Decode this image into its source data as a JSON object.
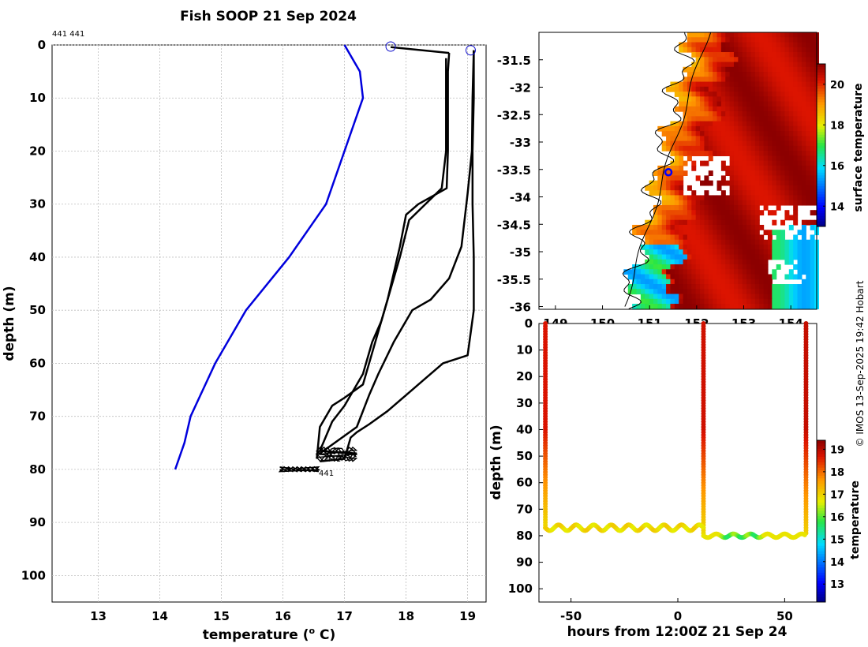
{
  "title": "Fish SOOP 21 Sep 2024",
  "copyright": "© IMOS 13-Sep-2025 19:42 Hobart",
  "chart_data": [
    {
      "type": "line",
      "panel": "temperature-profiles",
      "corner_label": "441 441",
      "xlabel": "temperature (°C)",
      "ylabel": "depth (m)",
      "xlim": [
        12.25,
        19.3
      ],
      "ylim": [
        105,
        0
      ],
      "xticks": [
        13,
        14,
        15,
        16,
        17,
        18,
        19
      ],
      "yticks": [
        0,
        10,
        20,
        30,
        40,
        50,
        60,
        70,
        80,
        90,
        100
      ],
      "grid": true,
      "bottom_labels": [
        "441",
        "441"
      ],
      "climatology": {
        "color": "#0000dd",
        "points": [
          [
            17.0,
            0
          ],
          [
            17.25,
            5
          ],
          [
            17.3,
            10
          ],
          [
            17.0,
            20
          ],
          [
            16.7,
            30
          ],
          [
            16.1,
            40
          ],
          [
            15.4,
            50
          ],
          [
            14.9,
            60
          ],
          [
            14.5,
            70
          ],
          [
            14.4,
            75
          ],
          [
            14.25,
            80
          ]
        ]
      },
      "profiles": [
        {
          "color": "#000000",
          "points": [
            [
              18.7,
              1.5
            ],
            [
              18.68,
              5
            ],
            [
              18.68,
              20
            ],
            [
              18.66,
              27
            ],
            [
              18.2,
              30
            ],
            [
              18.0,
              32
            ],
            [
              17.9,
              38
            ],
            [
              17.7,
              48
            ],
            [
              17.4,
              60
            ],
            [
              17.3,
              64
            ],
            [
              17.0,
              66.5
            ],
            [
              16.8,
              68
            ],
            [
              16.6,
              72
            ],
            [
              16.55,
              78
            ]
          ]
        },
        {
          "color": "#000000",
          "points": [
            [
              18.65,
              2.5
            ],
            [
              18.65,
              20
            ],
            [
              18.58,
              27
            ],
            [
              18.05,
              33
            ],
            [
              17.9,
              40
            ],
            [
              17.6,
              52
            ],
            [
              17.45,
              56
            ],
            [
              17.3,
              62
            ],
            [
              17.0,
              68
            ],
            [
              16.8,
              71
            ],
            [
              16.6,
              76.5
            ],
            [
              17.2,
              77
            ]
          ]
        },
        {
          "color": "#000000",
          "points": [
            [
              19.1,
              1
            ],
            [
              19.08,
              10
            ],
            [
              19.07,
              20
            ],
            [
              19.0,
              28
            ],
            [
              18.9,
              38
            ],
            [
              18.7,
              44
            ],
            [
              18.4,
              48
            ],
            [
              18.1,
              50
            ],
            [
              17.8,
              56
            ],
            [
              17.55,
              62
            ],
            [
              17.4,
              66
            ],
            [
              17.2,
              72
            ],
            [
              16.6,
              77
            ]
          ]
        },
        {
          "color": "#000000",
          "points": [
            [
              19.1,
              1
            ],
            [
              19.1,
              10
            ],
            [
              19.08,
              20
            ],
            [
              19.08,
              30
            ],
            [
              19.1,
              40
            ],
            [
              19.1,
              50
            ],
            [
              19.0,
              58.5
            ],
            [
              18.6,
              60
            ],
            [
              18.3,
              63
            ],
            [
              18.0,
              66
            ],
            [
              17.7,
              69
            ],
            [
              17.4,
              71.5
            ],
            [
              17.2,
              73
            ],
            [
              17.1,
              74
            ],
            [
              17.0,
              78
            ],
            [
              16.6,
              78.5
            ]
          ]
        }
      ],
      "surface_markers": [
        [
          17.75,
          0.3
        ],
        [
          19.05,
          1
        ]
      ]
    },
    {
      "type": "heatmap",
      "panel": "sst-map",
      "colorbar_label": "surface temperature",
      "colorbar_range": [
        13,
        21
      ],
      "colorbar_ticks": [
        14,
        16,
        18,
        20
      ],
      "xticks": [
        149,
        150,
        151,
        152,
        153,
        154
      ],
      "yticks": [
        -31.5,
        -32,
        -32.5,
        -33,
        -33.5,
        -34,
        -34.5,
        -35,
        -35.5,
        -36
      ],
      "xlim": [
        148.65,
        154.55
      ],
      "ylim": [
        -36.05,
        -31.0
      ],
      "marker": [
        151.4,
        -33.55
      ]
    },
    {
      "type": "scatter",
      "panel": "depth-time",
      "xlabel": "hours from 12:00Z 21 Sep 24",
      "ylabel": "depth (m)",
      "colorbar_label": "temperature",
      "colorbar_range": [
        12.2,
        19.4
      ],
      "colorbar_ticks": [
        13,
        14,
        15,
        16,
        17,
        18,
        19
      ],
      "xlim": [
        -65,
        65
      ],
      "ylim": [
        105,
        0
      ],
      "xticks": [
        -50,
        0,
        50
      ],
      "yticks": [
        0,
        10,
        20,
        30,
        40,
        50,
        60,
        70,
        80,
        90,
        100
      ],
      "casts": [
        {
          "time": -62,
          "surface_temp": 18.7,
          "bottom_depth": 77
        },
        {
          "time": 12,
          "surface_temp": 18.8,
          "bottom_depth": 79
        },
        {
          "time": 60,
          "surface_temp": 18.9,
          "bottom_depth": 79
        }
      ]
    }
  ]
}
